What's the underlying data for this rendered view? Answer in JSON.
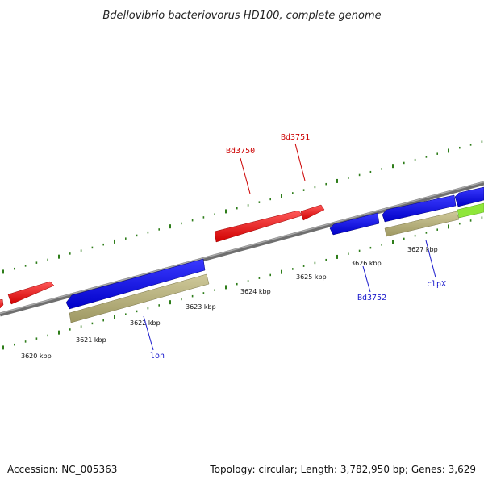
{
  "title": "Bdellovibrio bacteriovorus HD100, complete genome",
  "footer": {
    "accession": "Accession: NC_005363",
    "summary": "Topology: circular; Length: 3,782,950 bp; Genes: 3,629"
  },
  "colors": {
    "backbone": "#808080",
    "tick": "#2e7d1a",
    "forward_gene": "#ff0000",
    "reverse_gene": "#0000ff",
    "rna_band": "#b8b27a",
    "highlight_band": "#90ee30",
    "red_label": "#cc0000",
    "blue_label": "#1a1acc"
  },
  "scale_labels": [
    "3620 kbp",
    "3621 kbp",
    "3622 kbp",
    "3623 kbp",
    "3624 kbp",
    "3625 kbp",
    "3626 kbp",
    "3627 kbp"
  ],
  "gene_labels": {
    "bd3750": "Bd3750",
    "bd3751": "Bd3751",
    "bd3752": "Bd3752",
    "clpx": "clpX",
    "lon": "lon"
  }
}
